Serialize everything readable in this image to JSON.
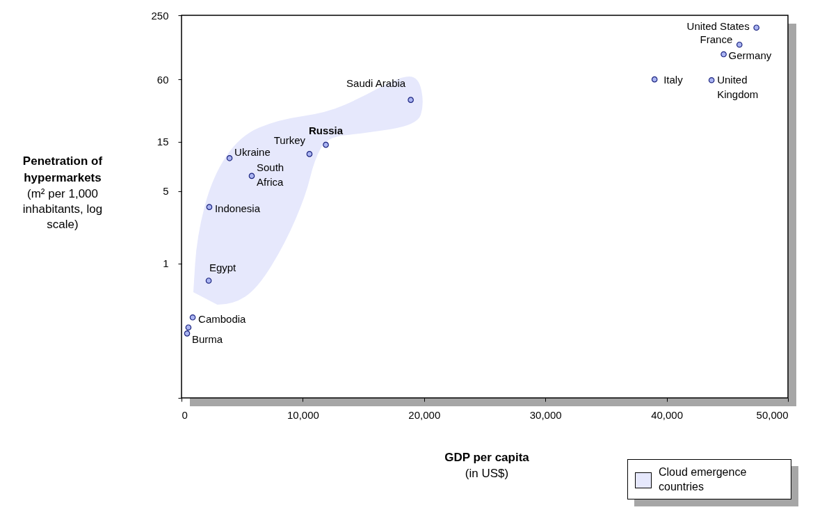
{
  "chart_data": {
    "type": "scatter",
    "xlabel": "GDP per capita (in US$)",
    "ylabel": "Penetration of hypermarkets (m² per 1,000 inhabitants, log scale)",
    "series": [
      {
        "color": "#aab4f2",
        "x": [
          47400,
          46000,
          44700,
          39000,
          43700,
          18900,
          11900,
          10550,
          3960,
          5790,
          2290,
          2240,
          920,
          570,
          460
        ],
        "values": [
          190,
          130,
          105,
          60,
          59,
          38,
          14,
          11.4,
          10.4,
          7,
          3.5,
          0.68,
          0.3,
          0.24,
          0.21
        ]
      }
    ],
    "log": true,
    "marker": "circle",
    "grid": false,
    "xlim": [
      0,
      50000
    ],
    "xticks": [
      0,
      {
        "value": 10000,
        "label": "10,000"
      },
      {
        "value": 20000,
        "label": "20,000"
      },
      {
        "value": 30000,
        "label": "30,000"
      },
      {
        "value": 40000,
        "label": "40,000"
      },
      {
        "value": 50000,
        "label": "50,000"
      }
    ],
    "ylim": [
      0.05,
      250
    ],
    "yticks": [
      {
        "value": 0.05,
        "label": null
      },
      1,
      5,
      15,
      60,
      250
    ],
    "annotations": [
      {
        "text": "United States",
        "x": 47400,
        "y": 190
      },
      {
        "text": "France",
        "x": 46000,
        "y": 130
      },
      {
        "text": "Germany",
        "x": 44700,
        "y": 105
      },
      {
        "text": "Italy",
        "x": 39000,
        "y": 60
      },
      {
        "text": "United Kingdom",
        "x": 43700,
        "y": 59
      },
      {
        "text": "Saudi Arabia",
        "x": 18900,
        "y": 38
      },
      {
        "text": "Russia",
        "x": 11900,
        "y": 14
      },
      {
        "text": "Turkey",
        "x": 10550,
        "y": 11.4
      },
      {
        "text": "Ukraine",
        "x": 3960,
        "y": 10.4
      },
      {
        "text": "South Africa",
        "x": 5790,
        "y": 7
      },
      {
        "text": "Indonesia",
        "x": 2290,
        "y": 3.5
      },
      {
        "text": "Egypt",
        "x": 2240,
        "y": 0.68
      },
      {
        "text": "Cambodia",
        "x": 920,
        "y": 0.3
      },
      {
        "text": "Burma",
        "x": 460,
        "y": 0.21
      },
      "Cloud emergence countries"
    ]
  }
}
